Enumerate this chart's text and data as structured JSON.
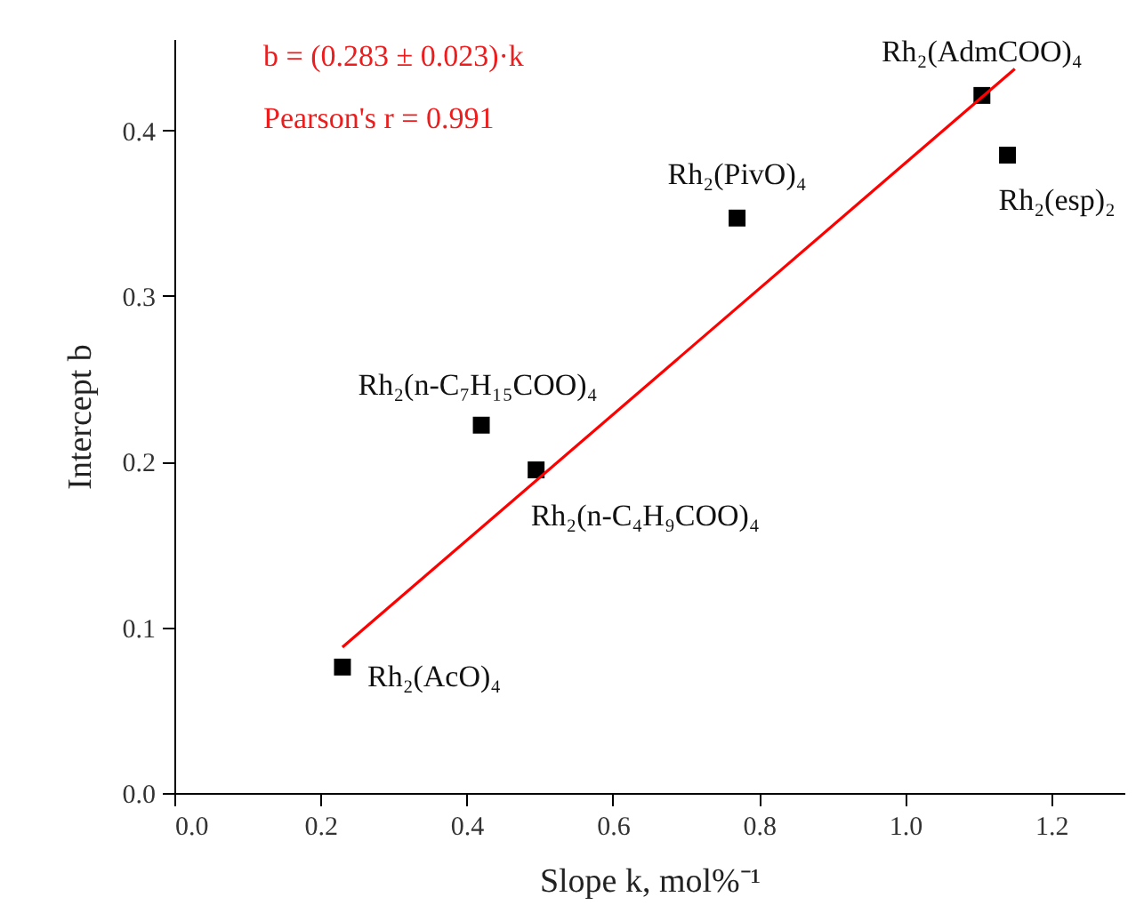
{
  "chart_data": {
    "type": "scatter",
    "xlabel": "Slope k, mol%⁻¹",
    "ylabel": "Intercept b",
    "xlim": [
      0,
      1.3
    ],
    "ylim": [
      0,
      0.455
    ],
    "xticks": [
      {
        "value": 0,
        "label": "0.0"
      },
      {
        "value": 0.2,
        "label": "0.2"
      },
      {
        "value": 0.4,
        "label": "0.4"
      },
      {
        "value": 0.6,
        "label": "0.6"
      },
      {
        "value": 0.8,
        "label": "0.8"
      },
      {
        "value": 1.0,
        "label": "1.0"
      },
      {
        "value": 1.2,
        "label": "1.2"
      }
    ],
    "yticks": [
      {
        "value": 0,
        "label": "0.0"
      },
      {
        "value": 0.1,
        "label": "0.1"
      },
      {
        "value": 0.2,
        "label": "0.2"
      },
      {
        "value": 0.3,
        "label": "0.3"
      },
      {
        "value": 0.4,
        "label": "0.4"
      }
    ],
    "grid": false,
    "series": [
      {
        "marker": "square",
        "color": "#000000",
        "x": [
          0.23,
          0.42,
          0.495,
          0.77,
          1.105,
          1.14
        ],
        "values": [
          0.076,
          0.222,
          0.195,
          0.347,
          0.421,
          0.385
        ]
      },
      {
        "type": "line",
        "marker": "none",
        "line_style": "solid",
        "color": "#ff0000",
        "x": [
          0.23,
          1.15
        ],
        "values": [
          0.088,
          0.437
        ]
      }
    ],
    "annotations": [
      {
        "text": "Rh₂(AcO)₄",
        "x": 0.23,
        "y": 0.076
      },
      {
        "text": "Rh₂(n-C₇H₁₅COO)₄",
        "x": 0.42,
        "y": 0.222
      },
      {
        "text": "Rh₂(n-C₄H₉COO)₄",
        "x": 0.495,
        "y": 0.195
      },
      {
        "text": "Rh₂(PivO)₄",
        "x": 0.77,
        "y": 0.347
      },
      {
        "text": "Rh₂(AdmCOO)₄",
        "x": 1.105,
        "y": 0.421
      },
      {
        "text": "Rh₂(esp)₂",
        "x": 1.14,
        "y": 0.385
      },
      "b = (0.283 ± 0.023)·k",
      "Pearson's r = 0.991"
    ]
  }
}
